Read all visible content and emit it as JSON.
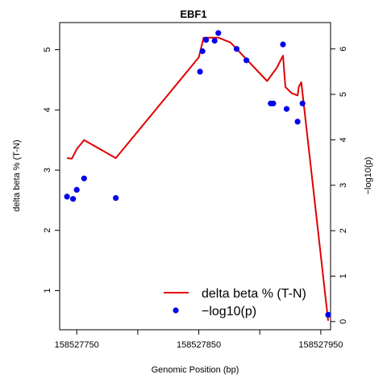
{
  "chart_data": {
    "type": "line",
    "title": "EBF1",
    "xlabel": "Genomic Position (bp)",
    "ylabel": "delta beta % (T-N)",
    "y2label": "−log10(p)",
    "xlim": [
      158527736,
      158527958
    ],
    "ylim": [
      0.35,
      5.45
    ],
    "y2lim": [
      -0.18,
      6.58
    ],
    "xticks": [
      158527750,
      158527800,
      158527850,
      158527900,
      158527950
    ],
    "xtick_labels": [
      "158527750",
      "",
      "158527850",
      "",
      "158527950"
    ],
    "yticks": [
      1,
      2,
      3,
      4,
      5
    ],
    "ytick_labels": [
      "1",
      "2",
      "3",
      "4",
      "5"
    ],
    "y2ticks": [
      0,
      1,
      2,
      3,
      4,
      5,
      6
    ],
    "y2tick_labels": [
      "0",
      "1",
      "2",
      "3",
      "4",
      "5",
      "6"
    ],
    "legend_position": "bottom-right",
    "grid": false,
    "series": [
      {
        "name": "delta beta % (T-N)",
        "axis": "left",
        "style": "line",
        "color": "#E00000",
        "x": [
          158527742,
          158527746,
          158527750,
          158527756,
          158527782,
          158527850,
          158527854,
          158527866,
          158527876,
          158527906,
          158527914,
          158527919,
          158527921,
          158527926,
          158527931,
          158527932,
          158527934,
          158527956
        ],
        "y": [
          3.2,
          3.19,
          3.35,
          3.5,
          3.2,
          4.87,
          5.2,
          5.2,
          5.12,
          4.48,
          4.7,
          4.9,
          4.38,
          4.28,
          4.24,
          4.38,
          4.46,
          0.5
        ]
      },
      {
        "name": "−log10(p)",
        "axis": "right",
        "style": "points",
        "color": "#0000EE",
        "x": [
          158527742,
          158527747,
          158527750,
          158527756,
          158527782,
          158527851,
          158527853,
          158527856,
          158527863,
          158527866,
          158527881,
          158527889,
          158527909,
          158527911,
          158527919,
          158527922,
          158527931,
          158527935,
          158527956
        ],
        "y": [
          2.75,
          2.7,
          2.9,
          3.15,
          2.72,
          5.5,
          5.95,
          6.2,
          6.18,
          6.35,
          6.0,
          5.75,
          4.8,
          4.8,
          6.1,
          4.68,
          4.4,
          4.8,
          0.15
        ]
      }
    ]
  }
}
